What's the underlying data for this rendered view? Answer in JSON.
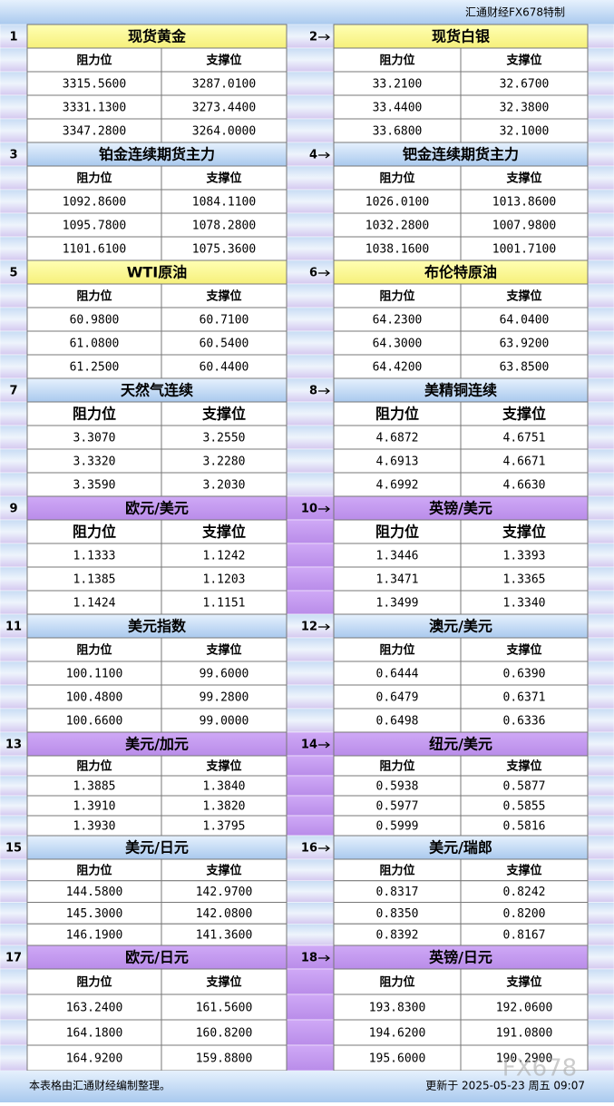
{
  "header": {
    "brand": "汇通财经FX678特制"
  },
  "panels": [
    {
      "number": "1",
      "title": "现货黄金",
      "columns": [
        "阻力位",
        "支撑位"
      ],
      "rows": [
        [
          "3315.5600",
          "3287.0100"
        ],
        [
          "3331.1300",
          "3273.4400"
        ],
        [
          "3347.2800",
          "3264.0000"
        ]
      ]
    },
    {
      "number": "2",
      "title": "现货白银",
      "columns": [
        "阻力位",
        "支撑位"
      ],
      "rows": [
        [
          "33.2100",
          "32.6700"
        ],
        [
          "33.4400",
          "32.3800"
        ],
        [
          "33.6800",
          "32.1000"
        ]
      ]
    },
    {
      "number": "3",
      "title": "铂金连续期货主力",
      "columns": [
        "阻力位",
        "支撑位"
      ],
      "rows": [
        [
          "1092.8600",
          "1084.1100"
        ],
        [
          "1095.7800",
          "1078.2800"
        ],
        [
          "1101.6100",
          "1075.3600"
        ]
      ]
    },
    {
      "number": "4",
      "title": "钯金连续期货主力",
      "columns": [
        "阻力位",
        "支撑位"
      ],
      "rows": [
        [
          "1026.0100",
          "1013.8600"
        ],
        [
          "1032.2800",
          "1007.9800"
        ],
        [
          "1038.1600",
          "1001.7100"
        ]
      ]
    },
    {
      "number": "5",
      "title": "WTI原油",
      "columns": [
        "阻力位",
        "支撑位"
      ],
      "rows": [
        [
          "60.9800",
          "60.7100"
        ],
        [
          "61.0800",
          "60.5400"
        ],
        [
          "61.2500",
          "60.4400"
        ]
      ]
    },
    {
      "number": "6",
      "title": "布伦特原油",
      "columns": [
        "阻力位",
        "支撑位"
      ],
      "rows": [
        [
          "64.2300",
          "64.0400"
        ],
        [
          "64.3000",
          "63.9200"
        ],
        [
          "64.4200",
          "63.8500"
        ]
      ]
    },
    {
      "number": "7",
      "title": "天然气连续",
      "columns": [
        "阻力位",
        "支撑位"
      ],
      "rows": [
        [
          "3.3070",
          "3.2550"
        ],
        [
          "3.3320",
          "3.2280"
        ],
        [
          "3.3590",
          "3.2030"
        ]
      ]
    },
    {
      "number": "8",
      "title": "美精铜连续",
      "columns": [
        "阻力位",
        "支撑位"
      ],
      "rows": [
        [
          "4.6872",
          "4.6751"
        ],
        [
          "4.6913",
          "4.6671"
        ],
        [
          "4.6992",
          "4.6630"
        ]
      ]
    },
    {
      "number": "9",
      "title": "欧元/美元",
      "columns": [
        "阻力位",
        "支撑位"
      ],
      "rows": [
        [
          "1.1333",
          "1.1242"
        ],
        [
          "1.1385",
          "1.1203"
        ],
        [
          "1.1424",
          "1.1151"
        ]
      ]
    },
    {
      "number": "10",
      "title": "英镑/美元",
      "columns": [
        "阻力位",
        "支撑位"
      ],
      "rows": [
        [
          "1.3446",
          "1.3393"
        ],
        [
          "1.3471",
          "1.3365"
        ],
        [
          "1.3499",
          "1.3340"
        ]
      ]
    },
    {
      "number": "11",
      "title": "美元指数",
      "columns": [
        "阻力位",
        "支撑位"
      ],
      "rows": [
        [
          "100.1100",
          "99.6000"
        ],
        [
          "100.4800",
          "99.2800"
        ],
        [
          "100.6600",
          "99.0000"
        ]
      ]
    },
    {
      "number": "12",
      "title": "澳元/美元",
      "columns": [
        "阻力位",
        "支撑位"
      ],
      "rows": [
        [
          "0.6444",
          "0.6390"
        ],
        [
          "0.6479",
          "0.6371"
        ],
        [
          "0.6498",
          "0.6336"
        ]
      ]
    },
    {
      "number": "13",
      "title": "美元/加元",
      "columns": [
        "阻力位",
        "支撑位"
      ],
      "rows": [
        [
          "1.3885",
          "1.3840"
        ],
        [
          "1.3910",
          "1.3820"
        ],
        [
          "1.3930",
          "1.3795"
        ]
      ]
    },
    {
      "number": "14",
      "title": "纽元/美元",
      "columns": [
        "阻力位",
        "支撑位"
      ],
      "rows": [
        [
          "0.5938",
          "0.5877"
        ],
        [
          "0.5977",
          "0.5855"
        ],
        [
          "0.5999",
          "0.5816"
        ]
      ]
    },
    {
      "number": "15",
      "title": "美元/日元",
      "columns": [
        "阻力位",
        "支撑位"
      ],
      "rows": [
        [
          "144.5800",
          "142.9700"
        ],
        [
          "145.3000",
          "142.0800"
        ],
        [
          "146.1900",
          "141.3600"
        ]
      ]
    },
    {
      "number": "16",
      "title": "美元/瑞郎",
      "columns": [
        "阻力位",
        "支撑位"
      ],
      "rows": [
        [
          "0.8317",
          "0.8242"
        ],
        [
          "0.8350",
          "0.8200"
        ],
        [
          "0.8392",
          "0.8167"
        ]
      ]
    },
    {
      "number": "17",
      "title": "欧元/日元",
      "columns": [
        "阻力位",
        "支撑位"
      ],
      "rows": [
        [
          "163.2400",
          "161.5600"
        ],
        [
          "164.1800",
          "160.8200"
        ],
        [
          "164.9200",
          "159.8800"
        ]
      ]
    },
    {
      "number": "18",
      "title": "英镑/日元",
      "columns": [
        "阻力位",
        "支撑位"
      ],
      "rows": [
        [
          "193.8300",
          "192.0600"
        ],
        [
          "194.6200",
          "191.0800"
        ],
        [
          "195.6000",
          "190.2900"
        ]
      ]
    }
  ],
  "footer": {
    "note": "本表格由汇通财经编制整理。",
    "updated": "更新于 2025-05-23 周五 09:07"
  },
  "watermark": "FX678"
}
